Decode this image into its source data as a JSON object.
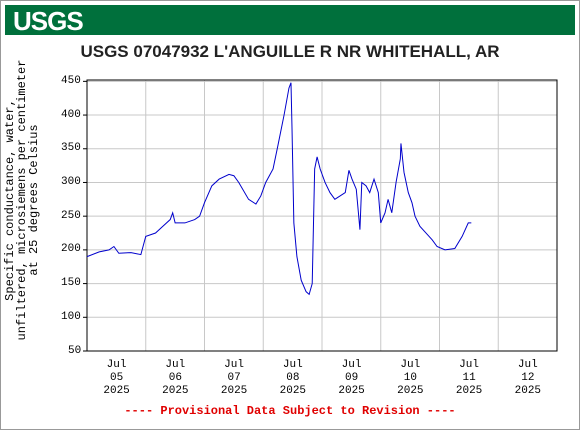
{
  "header": {
    "logo": "USGS"
  },
  "chart_data": {
    "type": "line",
    "title": "USGS 07047932 L'ANGUILLE R NR WHITEHALL, AR",
    "ylabel": "Specific conductance, water,\nunfiltered, microsiemens per centimeter\nat 25 degrees Celsius",
    "footnote": "---- Provisional Data Subject to Revision ----",
    "xlim": [
      "2025-07-05T00:00",
      "2025-07-13T00:00"
    ],
    "xticks": [
      {
        "value": "2025-07-05T12:00",
        "label": "Jul\n05\n2025"
      },
      {
        "value": "2025-07-06T12:00",
        "label": "Jul\n06\n2025"
      },
      {
        "value": "2025-07-07T12:00",
        "label": "Jul\n07\n2025"
      },
      {
        "value": "2025-07-08T12:00",
        "label": "Jul\n08\n2025"
      },
      {
        "value": "2025-07-09T12:00",
        "label": "Jul\n09\n2025"
      },
      {
        "value": "2025-07-10T12:00",
        "label": "Jul\n10\n2025"
      },
      {
        "value": "2025-07-11T12:00",
        "label": "Jul\n11\n2025"
      },
      {
        "value": "2025-07-12T12:00",
        "label": "Jul\n12\n2025"
      }
    ],
    "ylim": [
      50,
      452
    ],
    "yticks": [
      50,
      100,
      150,
      200,
      250,
      300,
      350,
      400,
      450
    ],
    "grid": true,
    "x": [
      "2025-07-05T00:00",
      "2025-07-05T05:00",
      "2025-07-05T09:00",
      "2025-07-05T11:00",
      "2025-07-05T13:00",
      "2025-07-05T18:00",
      "2025-07-05T22:00",
      "2025-07-06T00:00",
      "2025-07-06T04:00",
      "2025-07-06T07:00",
      "2025-07-06T10:00",
      "2025-07-06T11:00",
      "2025-07-06T12:00",
      "2025-07-06T16:00",
      "2025-07-06T20:00",
      "2025-07-06T22:00",
      "2025-07-07T00:00",
      "2025-07-07T03:00",
      "2025-07-07T06:00",
      "2025-07-07T10:00",
      "2025-07-07T12:00",
      "2025-07-07T14:00",
      "2025-07-07T18:00",
      "2025-07-07T21:00",
      "2025-07-07T23:00",
      "2025-07-08T01:00",
      "2025-07-08T04:00",
      "2025-07-08T06:00",
      "2025-07-08T08:30",
      "2025-07-08T10:30",
      "2025-07-08T11:20",
      "2025-07-08T11:45",
      "2025-07-08T12:30",
      "2025-07-08T13:45",
      "2025-07-08T15:30",
      "2025-07-08T17:30",
      "2025-07-08T18:45",
      "2025-07-08T20:00",
      "2025-07-08T21:00",
      "2025-07-08T22:00",
      "2025-07-08T23:15",
      "2025-07-09T01:15",
      "2025-07-09T03:15",
      "2025-07-09T05:15",
      "2025-07-09T09:30",
      "2025-07-09T11:00",
      "2025-07-09T12:15",
      "2025-07-09T14:00",
      "2025-07-09T15:30",
      "2025-07-09T16:15",
      "2025-07-09T18:00",
      "2025-07-09T19:30",
      "2025-07-09T21:15",
      "2025-07-09T23:00",
      "2025-07-10T00:00",
      "2025-07-10T01:45",
      "2025-07-10T03:00",
      "2025-07-10T04:30",
      "2025-07-10T06:15",
      "2025-07-10T08:00",
      "2025-07-10T08:15",
      "2025-07-10T09:30",
      "2025-07-10T11:15",
      "2025-07-10T12:45",
      "2025-07-10T14:00",
      "2025-07-10T16:00",
      "2025-07-10T18:30",
      "2025-07-10T21:00",
      "2025-07-10T23:00",
      "2025-07-11T02:15",
      "2025-07-11T06:15",
      "2025-07-11T09:15",
      "2025-07-11T11:45",
      "2025-07-11T13:00"
    ],
    "series": [
      {
        "color": "#0000cc",
        "values": [
          190,
          197,
          200,
          205,
          195,
          196,
          193,
          220,
          225,
          235,
          245,
          255,
          240,
          240,
          245,
          250,
          270,
          295,
          305,
          312,
          310,
          300,
          275,
          268,
          280,
          300,
          320,
          355,
          400,
          440,
          448,
          380,
          240,
          190,
          155,
          138,
          134,
          150,
          320,
          338,
          320,
          300,
          285,
          275,
          285,
          318,
          305,
          290,
          230,
          300,
          295,
          285,
          305,
          285,
          240,
          255,
          275,
          255,
          300,
          335,
          358,
          315,
          285,
          270,
          250,
          235,
          225,
          215,
          205,
          200,
          202,
          220,
          240,
          240
        ]
      }
    ]
  }
}
